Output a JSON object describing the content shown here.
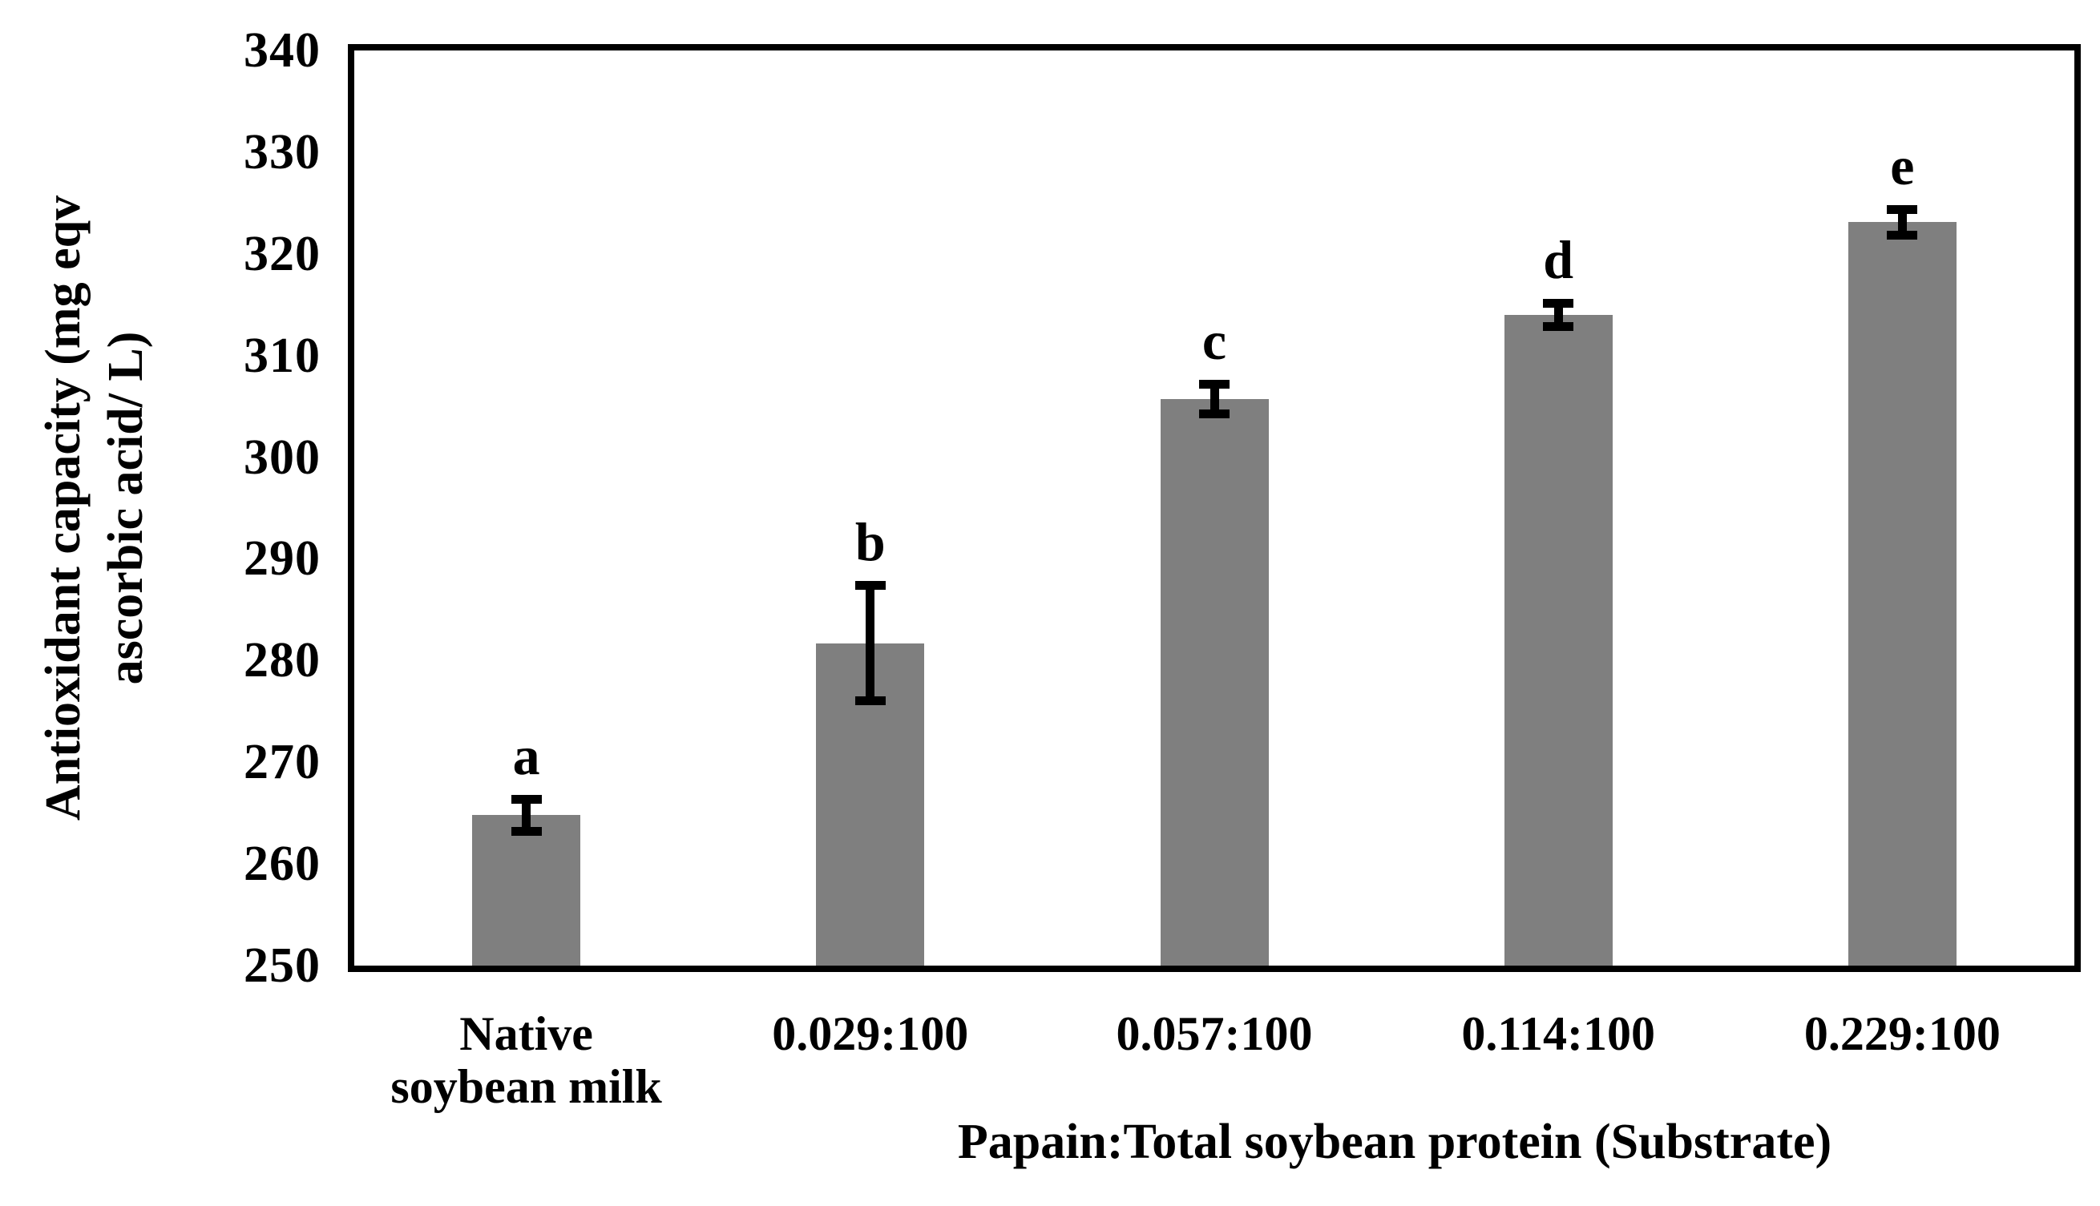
{
  "chart_data": {
    "type": "bar",
    "title": "",
    "categories": [
      "Native\nsoybean milk",
      "0.029:100",
      "0.057:100",
      "0.114:100",
      "0.229:100"
    ],
    "values": [
      264.8,
      281.7,
      305.7,
      314.0,
      323.1
    ],
    "errors": [
      1.6,
      5.7,
      1.5,
      1.2,
      1.3
    ],
    "sig_letters": [
      "a",
      "b",
      "c",
      "d",
      "e"
    ],
    "xlabel": "Papain:Total soybean protein (Substrate)",
    "ylabel": "Antioxidant capacity (mg eqv\nascorbic acid/ L)",
    "ylim": [
      250,
      340
    ],
    "yticks": [
      250,
      260,
      270,
      280,
      290,
      300,
      310,
      320,
      330,
      340
    ],
    "grid": false,
    "legend": false,
    "bar_color": "#7f7f7f",
    "axis_color": "#000000",
    "error_bar_color": "#000000"
  }
}
